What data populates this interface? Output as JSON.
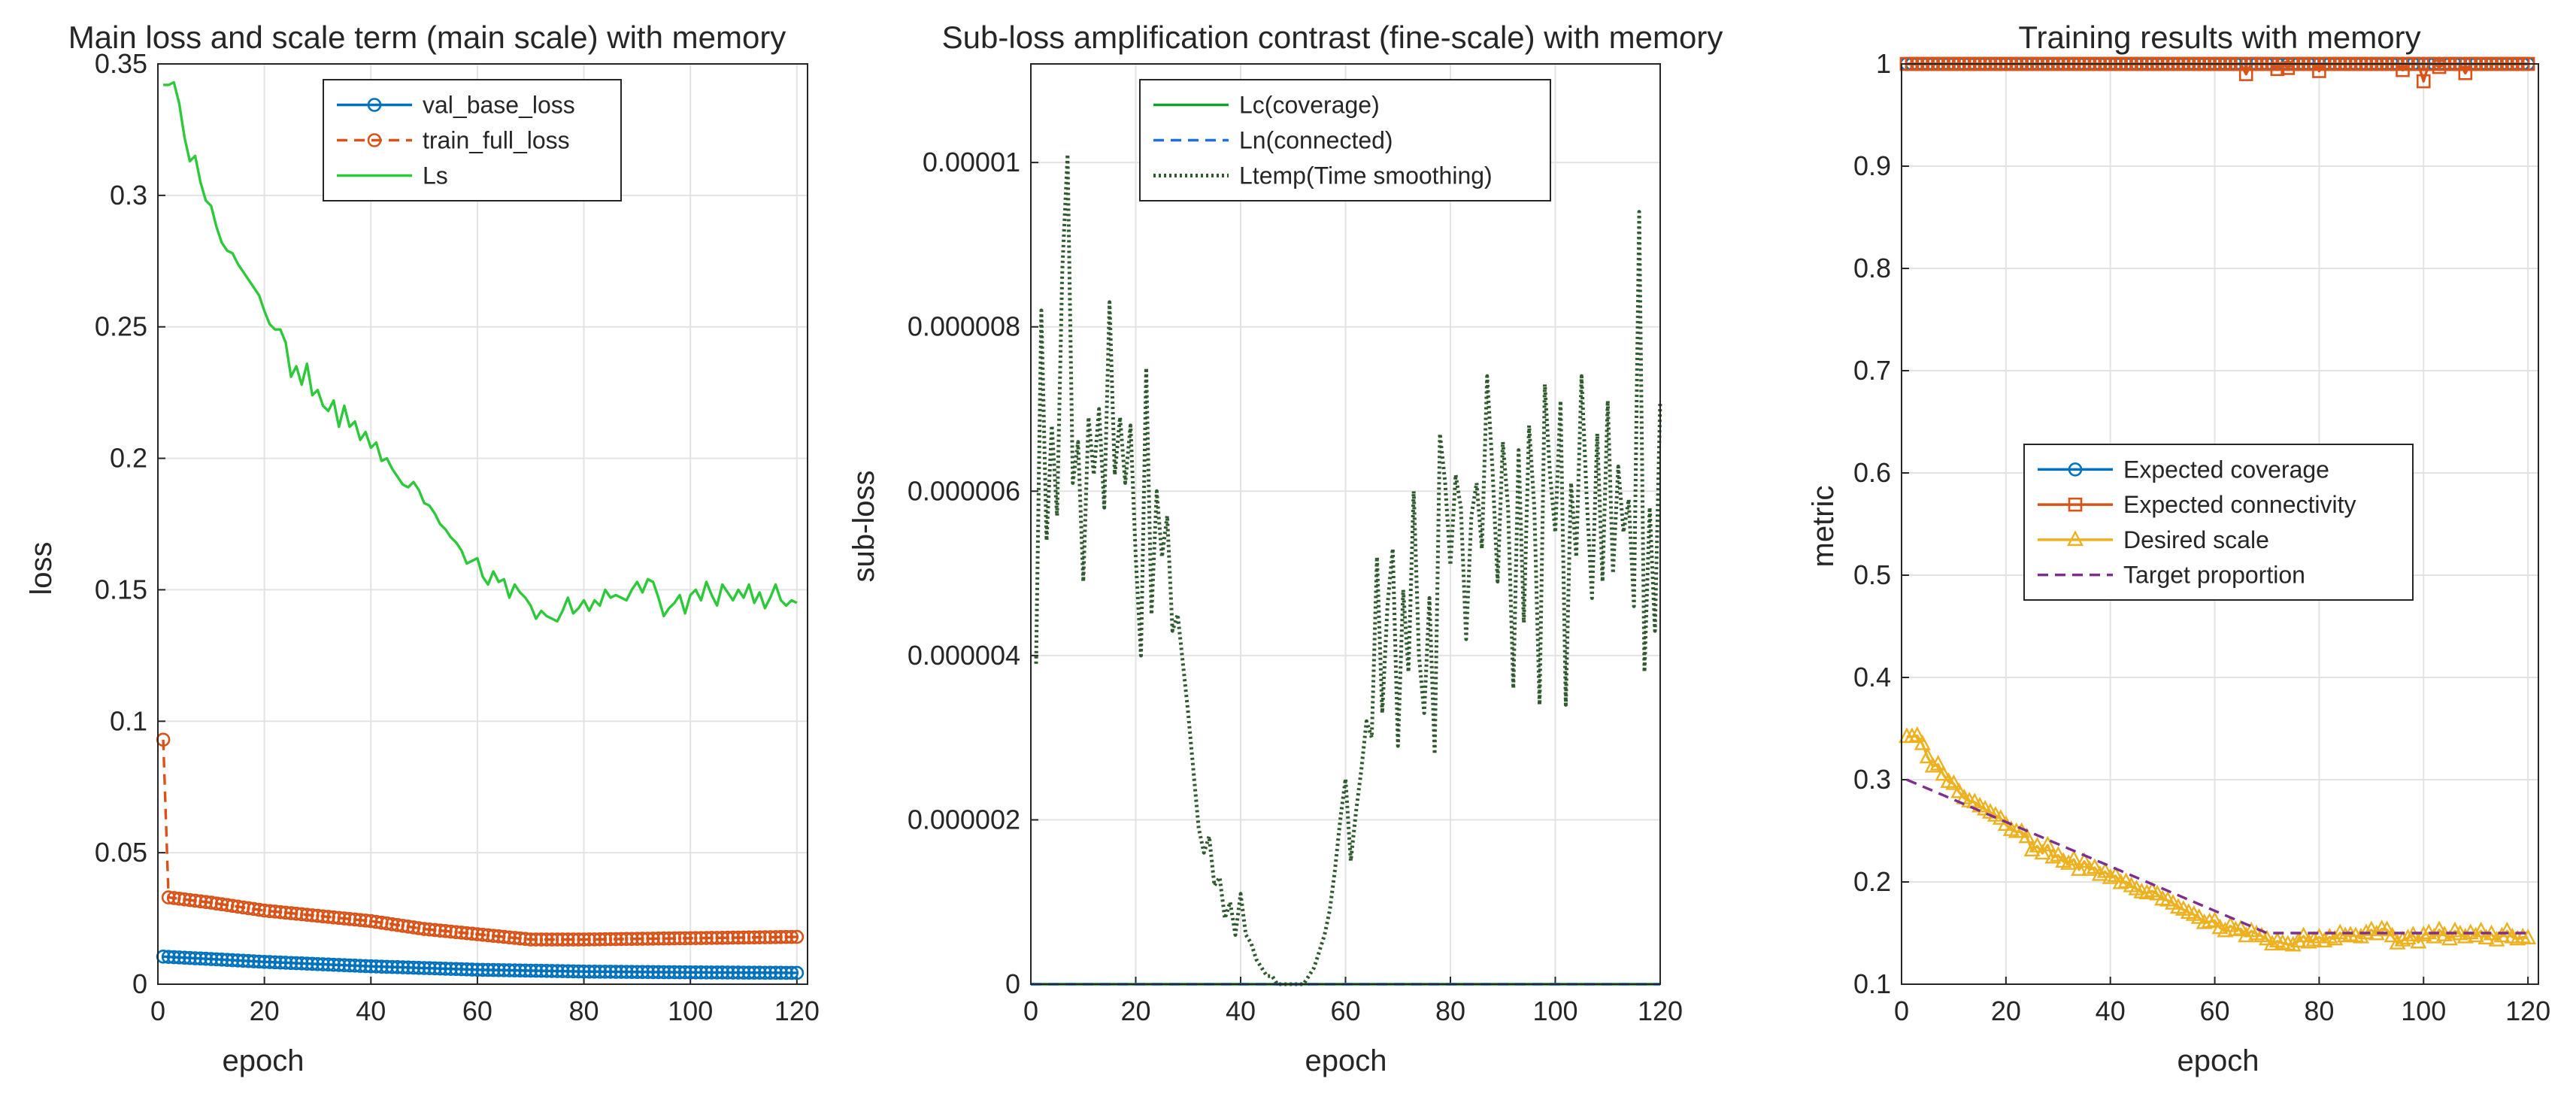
{
  "chart_data": [
    {
      "type": "line",
      "title": "Main loss and scale term (main scale) with memory",
      "xlabel": "epoch",
      "ylabel": "loss",
      "xlim": [
        0,
        122
      ],
      "ylim": [
        0,
        0.35
      ],
      "xticks": [
        "0",
        "20",
        "40",
        "60",
        "80",
        "100",
        "120"
      ],
      "yticks": [
        "0",
        "0.05",
        "0.1",
        "0.15",
        "0.2",
        "0.25",
        "0.3",
        "0.35"
      ],
      "grid": true,
      "legend_position": "top-right",
      "series": [
        {
          "name": "val_base_loss",
          "color": "#0072BD",
          "style": "solid",
          "marker": "circle",
          "x_start": 1,
          "x_end": 120,
          "keypoints": [
            [
              1,
              0.0105
            ],
            [
              20,
              0.0085
            ],
            [
              40,
              0.0068
            ],
            [
              60,
              0.0055
            ],
            [
              80,
              0.0048
            ],
            [
              100,
              0.0045
            ],
            [
              120,
              0.0043
            ]
          ]
        },
        {
          "name": "train_full_loss",
          "color": "#D95319",
          "style": "dashed",
          "marker": "circle",
          "x_start": 1,
          "x_end": 120,
          "keypoints": [
            [
              1,
              0.093
            ],
            [
              2,
              0.033
            ],
            [
              10,
              0.031
            ],
            [
              20,
              0.028
            ],
            [
              30,
              0.026
            ],
            [
              40,
              0.024
            ],
            [
              50,
              0.021
            ],
            [
              60,
              0.019
            ],
            [
              70,
              0.017
            ],
            [
              80,
              0.017
            ],
            [
              100,
              0.0175
            ],
            [
              120,
              0.018
            ]
          ]
        },
        {
          "name": "Ls",
          "color": "#2DC93A",
          "style": "solid",
          "marker": "none",
          "values": [
            0.342,
            0.342,
            0.343,
            0.335,
            0.322,
            0.313,
            0.315,
            0.305,
            0.298,
            0.296,
            0.288,
            0.282,
            0.279,
            0.278,
            0.274,
            0.271,
            0.268,
            0.265,
            0.262,
            0.256,
            0.251,
            0.249,
            0.249,
            0.244,
            0.231,
            0.235,
            0.228,
            0.236,
            0.224,
            0.226,
            0.22,
            0.218,
            0.222,
            0.212,
            0.22,
            0.212,
            0.214,
            0.207,
            0.21,
            0.204,
            0.206,
            0.199,
            0.2,
            0.196,
            0.193,
            0.19,
            0.189,
            0.191,
            0.188,
            0.183,
            0.182,
            0.179,
            0.175,
            0.173,
            0.17,
            0.168,
            0.165,
            0.16,
            0.161,
            0.162,
            0.155,
            0.152,
            0.157,
            0.153,
            0.154,
            0.147,
            0.152,
            0.149,
            0.147,
            0.144,
            0.139,
            0.142,
            0.14,
            0.139,
            0.138,
            0.142,
            0.147,
            0.141,
            0.143,
            0.146,
            0.142,
            0.146,
            0.144,
            0.15,
            0.147,
            0.148,
            0.147,
            0.146,
            0.15,
            0.153,
            0.149,
            0.154,
            0.153,
            0.147,
            0.14,
            0.143,
            0.145,
            0.148,
            0.141,
            0.148,
            0.15,
            0.146,
            0.153,
            0.148,
            0.144,
            0.152,
            0.149,
            0.146,
            0.15,
            0.147,
            0.152,
            0.145,
            0.149,
            0.143,
            0.147,
            0.152,
            0.146,
            0.144,
            0.146,
            0.145
          ]
        }
      ]
    },
    {
      "type": "line",
      "title": "Sub-loss amplification contrast (fine-scale) with memory",
      "xlabel": "epoch",
      "ylabel": "sub-loss",
      "xlim": [
        0,
        120
      ],
      "ylim": [
        0,
        1.12e-05
      ],
      "xticks": [
        "0",
        "20",
        "40",
        "60",
        "80",
        "100",
        "120"
      ],
      "yticks": [
        "0",
        "0.000002",
        "0.000004",
        "0.000006",
        "0.000008",
        "0.00001"
      ],
      "grid": true,
      "legend_position": "top-right",
      "series": [
        {
          "name": "Lc(coverage)",
          "color": "#12A02B",
          "style": "solid",
          "constant": 0
        },
        {
          "name": "Ln(connected)",
          "color": "#1F6FE0",
          "style": "dashed",
          "constant": 0
        },
        {
          "name": "Ltemp(Time smoothing)",
          "color": "#2E5A2E",
          "style": "dotted",
          "values": [
            3.9e-06,
            8.2e-06,
            5.4e-06,
            6.8e-06,
            5.7e-06,
            8.7e-06,
            1.01e-05,
            6.1e-06,
            6.6e-06,
            4.9e-06,
            6.9e-06,
            6.2e-06,
            7e-06,
            5.8e-06,
            8.3e-06,
            6.2e-06,
            6.9e-06,
            6.1e-06,
            6.8e-06,
            5.2e-06,
            4e-06,
            7.5e-06,
            4.5e-06,
            6e-06,
            5.2e-06,
            5.7e-06,
            4.3e-06,
            4.5e-06,
            3.9e-06,
            3.3e-06,
            2.6e-06,
            1.9e-06,
            1.6e-06,
            1.8e-06,
            1.2e-06,
            1.3e-06,
            8e-07,
            1e-06,
            6e-07,
            1.1e-06,
            6e-07,
            5e-07,
            3e-07,
            2e-07,
            1e-07,
            1e-07,
            0.0,
            0.0,
            0.0,
            0.0,
            0.0,
            0.0,
            1e-07,
            2e-07,
            4e-07,
            6e-07,
            9e-07,
            1.4e-06,
            2e-06,
            2.5e-06,
            1.5e-06,
            2.1e-06,
            2.6e-06,
            3.2e-06,
            3e-06,
            5.2e-06,
            3.3e-06,
            4.6e-06,
            5.3e-06,
            2.9e-06,
            4.8e-06,
            3.8e-06,
            6e-06,
            4e-06,
            3.3e-06,
            4.7e-06,
            2.8e-06,
            6.7e-06,
            6.1e-06,
            5.1e-06,
            6.2e-06,
            5.8e-06,
            4.2e-06,
            5.7e-06,
            6.1e-06,
            5.3e-06,
            7.4e-06,
            6.3e-06,
            4.9e-06,
            6.6e-06,
            5.8e-06,
            3.6e-06,
            6.5e-06,
            4.4e-06,
            6.8e-06,
            5.8e-06,
            3.4e-06,
            7.3e-06,
            6.2e-06,
            5.5e-06,
            7.1e-06,
            3.4e-06,
            6.1e-06,
            5.2e-06,
            7.4e-06,
            5.9e-06,
            4.7e-06,
            6.7e-06,
            4.9e-06,
            7.1e-06,
            5e-06,
            6.3e-06,
            5.5e-06,
            5.9e-06,
            4.6e-06,
            9.4e-06,
            3.8e-06,
            5.8e-06,
            4.3e-06,
            7.1e-06
          ]
        }
      ]
    },
    {
      "type": "line",
      "title": "Training results with memory",
      "xlabel": "epoch",
      "ylabel": "metric",
      "xlim": [
        0,
        122
      ],
      "ylim": [
        0.1,
        1.0
      ],
      "xticks": [
        "0",
        "20",
        "40",
        "60",
        "80",
        "100",
        "120"
      ],
      "yticks": [
        "0.1",
        "0.2",
        "0.3",
        "0.4",
        "0.5",
        "0.6",
        "0.7",
        "0.8",
        "0.9",
        "1"
      ],
      "grid": true,
      "legend_position": "center",
      "series": [
        {
          "name": "Expected coverage",
          "color": "#0072BD",
          "style": "solid",
          "marker": "circle",
          "constant": 1.0
        },
        {
          "name": "Expected connectivity",
          "color": "#D95319",
          "style": "solid",
          "marker": "square",
          "constant": 1.0,
          "dips": [
            [
              66,
              0.99
            ],
            [
              72,
              0.995
            ],
            [
              74,
              0.996
            ],
            [
              80,
              0.993
            ],
            [
              96,
              0.994
            ],
            [
              100,
              0.983
            ],
            [
              103,
              0.997
            ],
            [
              108,
              0.991
            ]
          ]
        },
        {
          "name": "Desired scale",
          "color": "#EDB120",
          "style": "solid",
          "marker": "triangle",
          "same_as_series": "Ls"
        },
        {
          "name": "Target proportion",
          "color": "#7E2F8E",
          "style": "dashed",
          "marker": "none",
          "keypoints": [
            [
              1,
              0.3
            ],
            [
              70,
              0.15
            ],
            [
              120,
              0.15
            ]
          ]
        }
      ]
    }
  ]
}
